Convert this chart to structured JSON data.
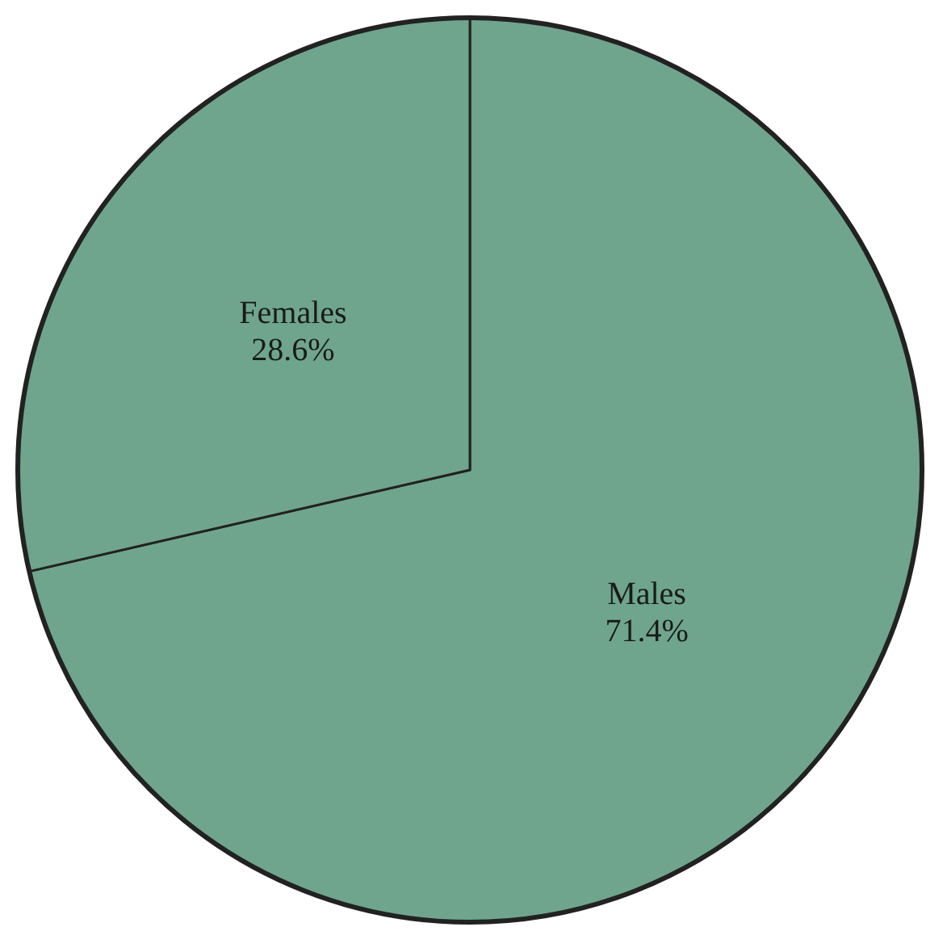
{
  "chart_data": {
    "type": "pie",
    "categories": [
      "Males",
      "Females"
    ],
    "values": [
      71.4,
      28.6
    ],
    "colors": [
      "#6fa58d",
      "#6fa58d"
    ],
    "value_labels": [
      "71.4%",
      "28.6%"
    ]
  }
}
